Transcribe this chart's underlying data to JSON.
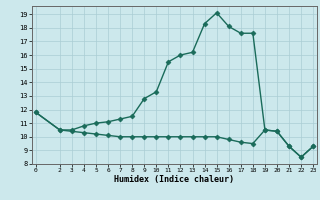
{
  "xlabel": "Humidex (Indice chaleur)",
  "bg_color": "#cce8ec",
  "grid_color": "#aacdd4",
  "line_color": "#1a6b5a",
  "xlim": [
    -0.3,
    23.3
  ],
  "ylim": [
    8,
    19.6
  ],
  "yticks": [
    8,
    9,
    10,
    11,
    12,
    13,
    14,
    15,
    16,
    17,
    18,
    19
  ],
  "xticks": [
    0,
    2,
    3,
    4,
    5,
    6,
    7,
    8,
    9,
    10,
    11,
    12,
    13,
    14,
    15,
    16,
    17,
    18,
    19,
    20,
    21,
    22,
    23
  ],
  "line1_x": [
    0,
    2,
    3,
    4,
    5,
    6,
    7,
    8,
    9,
    10,
    11,
    12,
    13,
    14,
    15,
    16,
    17,
    18,
    19,
    20,
    21,
    22,
    23
  ],
  "line1_y": [
    11.8,
    10.5,
    10.5,
    10.8,
    11.0,
    11.1,
    11.3,
    11.5,
    12.8,
    13.3,
    15.5,
    16.0,
    16.2,
    18.3,
    19.1,
    18.1,
    17.6,
    17.6,
    10.5,
    10.4,
    9.3,
    8.5,
    9.3
  ],
  "line2_x": [
    0,
    2,
    3,
    4,
    5,
    6,
    7,
    8,
    9,
    10,
    11,
    12,
    13,
    14,
    15,
    16,
    17,
    18,
    19,
    20,
    21,
    22,
    23
  ],
  "line2_y": [
    11.8,
    10.5,
    10.4,
    10.3,
    10.2,
    10.1,
    10.0,
    10.0,
    10.0,
    10.0,
    10.0,
    10.0,
    10.0,
    10.0,
    10.0,
    9.8,
    9.6,
    9.5,
    10.5,
    10.4,
    9.3,
    8.5,
    9.3
  ],
  "marker_size": 2.5,
  "linewidth": 1.0
}
